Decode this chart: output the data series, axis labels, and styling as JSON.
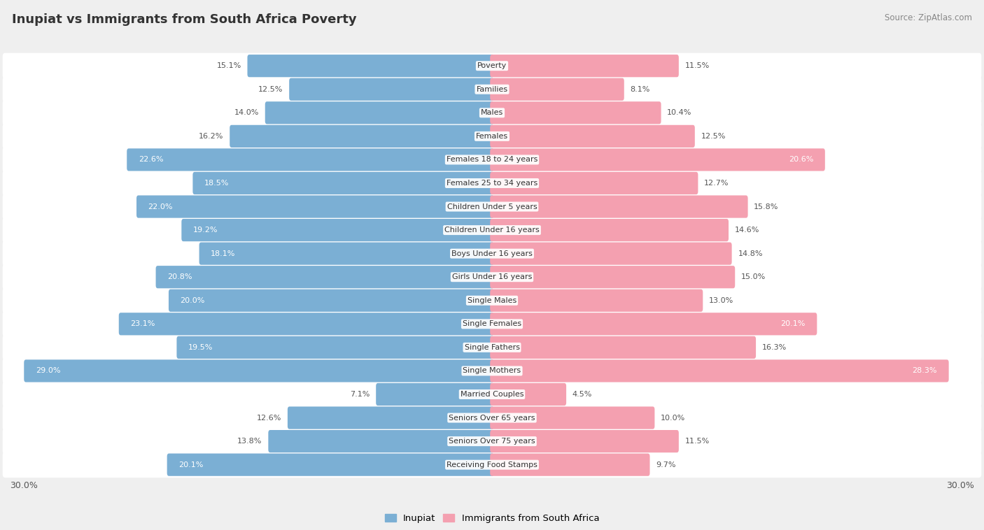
{
  "title": "Inupiat vs Immigrants from South Africa Poverty",
  "source": "Source: ZipAtlas.com",
  "categories": [
    "Poverty",
    "Families",
    "Males",
    "Females",
    "Females 18 to 24 years",
    "Females 25 to 34 years",
    "Children Under 5 years",
    "Children Under 16 years",
    "Boys Under 16 years",
    "Girls Under 16 years",
    "Single Males",
    "Single Females",
    "Single Fathers",
    "Single Mothers",
    "Married Couples",
    "Seniors Over 65 years",
    "Seniors Over 75 years",
    "Receiving Food Stamps"
  ],
  "inupiat": [
    15.1,
    12.5,
    14.0,
    16.2,
    22.6,
    18.5,
    22.0,
    19.2,
    18.1,
    20.8,
    20.0,
    23.1,
    19.5,
    29.0,
    7.1,
    12.6,
    13.8,
    20.1
  ],
  "south_africa": [
    11.5,
    8.1,
    10.4,
    12.5,
    20.6,
    12.7,
    15.8,
    14.6,
    14.8,
    15.0,
    13.0,
    20.1,
    16.3,
    28.3,
    4.5,
    10.0,
    11.5,
    9.7
  ],
  "max_val": 30.0,
  "inupiat_color": "#7bafd4",
  "south_africa_color": "#f4a0b0",
  "inupiat_label": "Inupiat",
  "south_africa_label": "Immigrants from South Africa",
  "bg_color": "#efefef",
  "row_bg_color": "#ffffff",
  "label_color_dark": "#555555",
  "label_color_white": "#ffffff",
  "title_color": "#333333",
  "source_color": "#888888",
  "threshold_inp": 18.0,
  "threshold_sa": 18.0
}
